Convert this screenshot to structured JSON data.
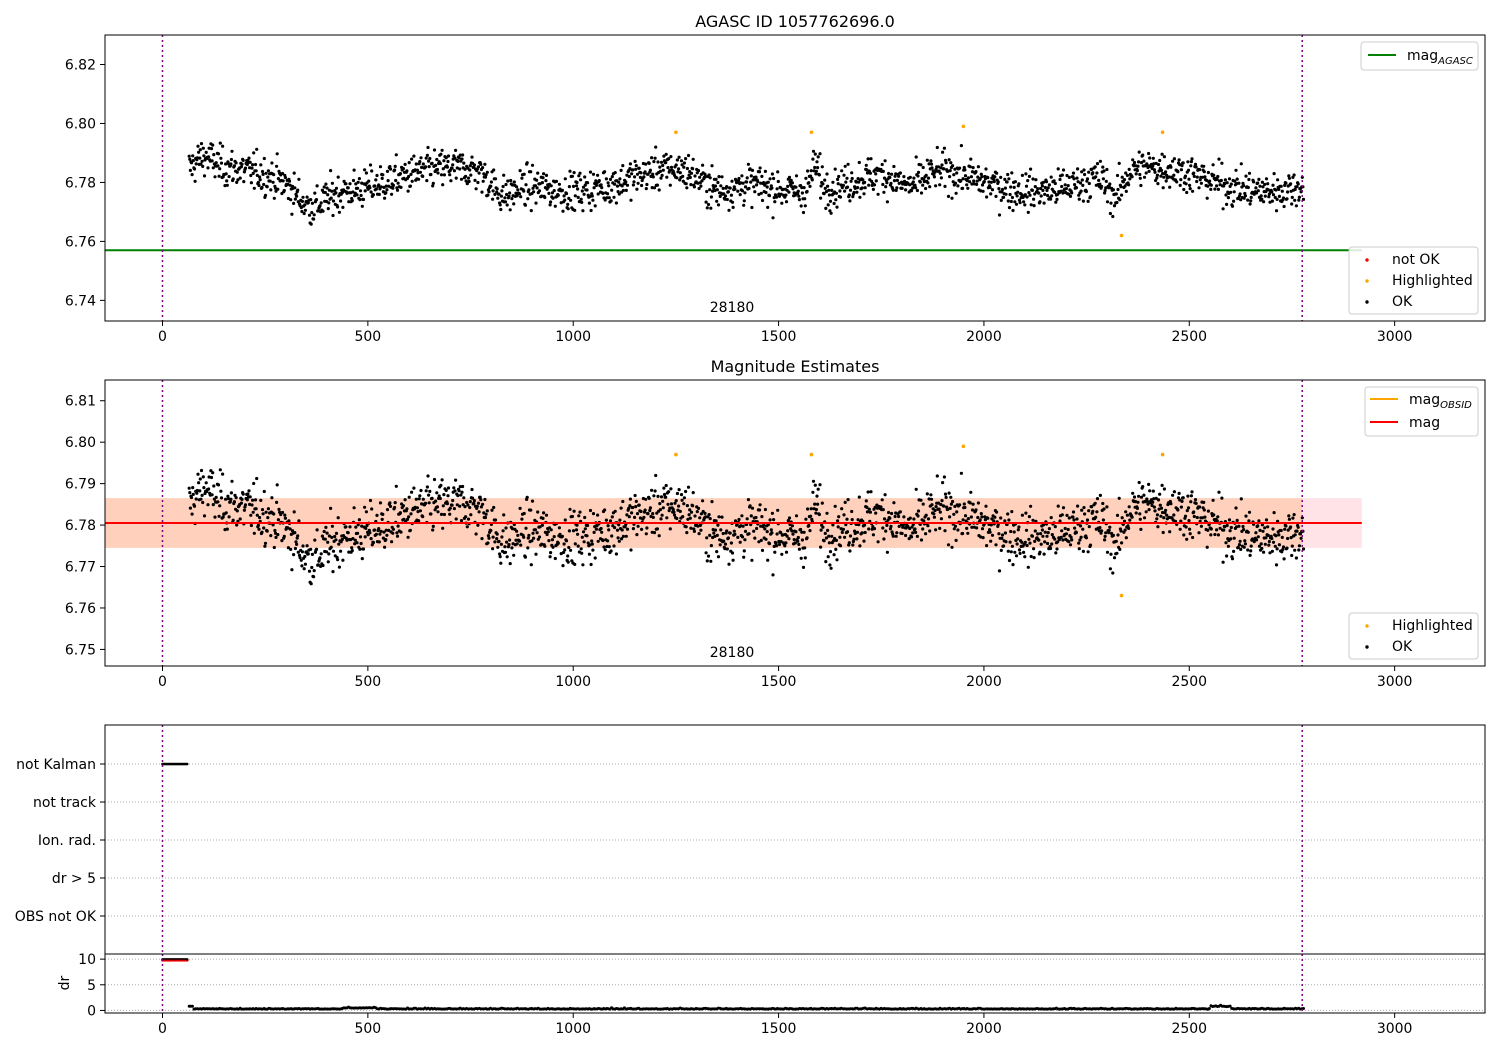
{
  "chart_data": [
    {
      "type": "scatter",
      "title": "AGASC ID 1057762696.0",
      "xlim": [
        -140,
        3220
      ],
      "ylim": [
        6.733,
        6.83
      ],
      "xticks": [
        0,
        500,
        1000,
        1500,
        2000,
        2500,
        3000
      ],
      "yticks": [
        6.74,
        6.76,
        6.78,
        6.8,
        6.82
      ],
      "ytick_labels": [
        "6.74",
        "6.76",
        "6.78",
        "6.80",
        "6.82"
      ],
      "vlines": [
        0,
        2775
      ],
      "hline": {
        "name": "mag_AGASC",
        "legend_main": "mag",
        "legend_sub": "AGASC",
        "y": 6.757,
        "color": "#008000"
      },
      "obsid_label": {
        "text": "28180",
        "x": 1380
      },
      "points_x_range": [
        65,
        2778
      ],
      "highlighted_points": [
        [
          1250,
          6.797
        ],
        [
          1580,
          6.797
        ],
        [
          1950,
          6.799
        ],
        [
          2335,
          6.762
        ],
        [
          2435,
          6.797
        ]
      ],
      "legend_markers": [
        {
          "label": "not OK",
          "color": "#ff0000"
        },
        {
          "label": "Highlighted",
          "color": "#ffa500"
        },
        {
          "label": "OK",
          "color": "#000000"
        }
      ],
      "legend_lines_placement": "top-right",
      "legend_markers_placement": "bottom-right"
    },
    {
      "type": "scatter",
      "title": "Magnitude Estimates",
      "xlim": [
        -140,
        3220
      ],
      "ylim": [
        6.746,
        6.815
      ],
      "xticks": [
        0,
        500,
        1000,
        1500,
        2000,
        2500,
        3000
      ],
      "yticks": [
        6.75,
        6.76,
        6.77,
        6.78,
        6.79,
        6.8,
        6.81
      ],
      "ytick_labels": [
        "6.75",
        "6.76",
        "6.77",
        "6.78",
        "6.79",
        "6.80",
        "6.81"
      ],
      "vlines": [
        0,
        2775
      ],
      "mag_line": {
        "name": "mag",
        "y": 6.7805,
        "x_range": [
          -140,
          2920
        ],
        "band": [
          6.7745,
          6.7865
        ],
        "color": "#ff0000"
      },
      "mag_obsid_line": {
        "name": "mag_OBSID",
        "legend_main": "mag",
        "legend_sub": "OBSID",
        "y": 6.7805,
        "x_range": [
          -140,
          2775
        ],
        "band": [
          6.7745,
          6.7865
        ],
        "color": "#ffa500"
      },
      "obsid_label": {
        "text": "28180",
        "x": 1380
      },
      "points_x_range": [
        65,
        2778
      ],
      "highlighted_points": [
        [
          1250,
          6.797
        ],
        [
          1580,
          6.797
        ],
        [
          1950,
          6.799
        ],
        [
          2335,
          6.763
        ],
        [
          2435,
          6.797
        ]
      ],
      "legend_markers": [
        {
          "label": "Highlighted",
          "color": "#ffa500"
        },
        {
          "label": "OK",
          "color": "#000000"
        }
      ],
      "legend_lines_placement": "top-right",
      "legend_markers_placement": "bottom-right"
    },
    {
      "type": "scatter",
      "xlim": [
        -140,
        3220
      ],
      "categories": [
        "not Kalman",
        "not track",
        "Ion. rad.",
        "dr > 5",
        "OBS not OK"
      ],
      "vlines": [
        0,
        2775
      ],
      "flags": [
        {
          "category": "not Kalman",
          "x_range": [
            0,
            60
          ]
        }
      ]
    },
    {
      "type": "scatter",
      "xlim": [
        -140,
        3220
      ],
      "ylim": [
        -0.5,
        11
      ],
      "ylabel": "dr",
      "yticks": [
        0,
        5,
        10
      ],
      "xticks": [
        0,
        500,
        1000,
        1500,
        2000,
        2500,
        3000
      ],
      "vlines": [
        0,
        2775
      ],
      "flagged_points": {
        "x_range": [
          0,
          60
        ],
        "y": 9.8,
        "color": "#ff0000"
      },
      "points_x_range": [
        65,
        2778
      ],
      "points_y_range": [
        0,
        0.8
      ]
    }
  ]
}
